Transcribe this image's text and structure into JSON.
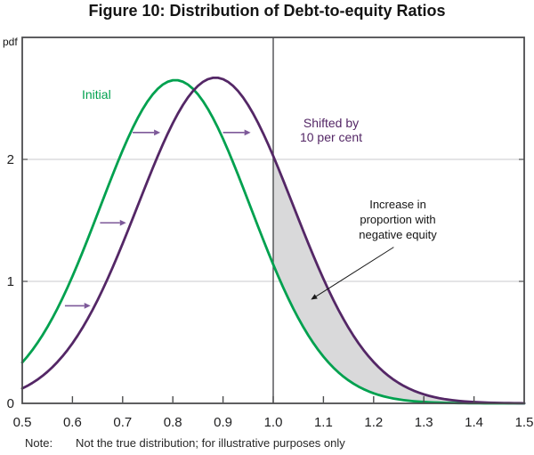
{
  "figure": {
    "title": "Figure 10: Distribution of Debt-to-equity Ratios"
  },
  "note": {
    "prefix": "Note:",
    "text": "Not the true distribution; for illustrative purposes only"
  },
  "chart_data": {
    "type": "line",
    "title": "Figure 10: Distribution of Debt-to-equity Ratios",
    "xlabel": "",
    "ylabel": "pdf",
    "xlim": [
      0.5,
      1.5
    ],
    "ylim": [
      0,
      3
    ],
    "grid": "horizontal-only",
    "legend_position": "inline-annotations",
    "x_tick_values": [
      0.5,
      0.6,
      0.7,
      0.8,
      0.9,
      1.0,
      1.1,
      1.2,
      1.3,
      1.4,
      1.5
    ],
    "x_tick_labels": [
      "0.5",
      "0.6",
      "0.7",
      "0.8",
      "0.9",
      "1.0",
      "1.1",
      "1.2",
      "1.3",
      "1.4",
      "1.5"
    ],
    "y_tick_values": [
      0,
      1,
      2
    ],
    "y_tick_labels": [
      "0",
      "1",
      "2"
    ],
    "y_gridlines": [
      1,
      2
    ],
    "reference_line_x": 1.0,
    "x": [
      0.5,
      0.55,
      0.6,
      0.65,
      0.7,
      0.75,
      0.8,
      0.85,
      0.9,
      0.95,
      1.0,
      1.05,
      1.1,
      1.15,
      1.2,
      1.25,
      1.3,
      1.35,
      1.4,
      1.45,
      1.5
    ],
    "series": [
      {
        "name": "Initial",
        "label": "Initial",
        "color": "#00a14f",
        "gaussian": {
          "mean": 0.805,
          "sigma": 0.15,
          "peak": 2.65
        },
        "y": [
          0.34,
          0.62,
          1.04,
          1.55,
          2.07,
          2.48,
          2.65,
          2.53,
          2.17,
          1.66,
          1.14,
          0.7,
          0.38,
          0.19,
          0.08,
          0.03,
          0.01,
          0,
          0,
          0,
          0
        ]
      },
      {
        "name": "Shifted by 10 per cent",
        "label": "Shifted by\n10 per cent",
        "color": "#542766",
        "gaussian": {
          "mean": 0.885,
          "sigma": 0.155,
          "peak": 2.67
        },
        "y": [
          0.12,
          0.26,
          0.49,
          0.85,
          1.31,
          1.83,
          2.3,
          2.6,
          2.66,
          2.45,
          2.03,
          1.51,
          1.02,
          0.62,
          0.34,
          0.17,
          0.07,
          0.03,
          0.01,
          0,
          0
        ]
      }
    ],
    "shaded_region": {
      "label": "Increase in\nproportion with\nnegative equity",
      "x_start": 1.0,
      "x_end": 1.5,
      "upper_series": "Shifted by 10 per cent",
      "lower_series": "Initial",
      "color": "#d9d9da"
    },
    "shift_arrows": [
      {
        "y": 2.22,
        "x_from": 0.72,
        "x_to": 0.775
      },
      {
        "y": 2.22,
        "x_from": 0.9,
        "x_to": 0.955
      },
      {
        "y": 1.48,
        "x_from": 0.655,
        "x_to": 0.707
      },
      {
        "y": 0.8,
        "x_from": 0.585,
        "x_to": 0.636
      }
    ],
    "annotation_arrow": {
      "from": {
        "x": 1.24,
        "y": 1.28
      },
      "to": {
        "x": 1.075,
        "y": 0.85
      }
    },
    "colors": {
      "frame": "#4c4d4f",
      "grid": "#c9cacc",
      "reference_line": "#4c4d4f",
      "shift_arrow": "#7d5999",
      "annotation_arrow": "#1a1a1a",
      "shaded": "#d9d9da"
    }
  }
}
